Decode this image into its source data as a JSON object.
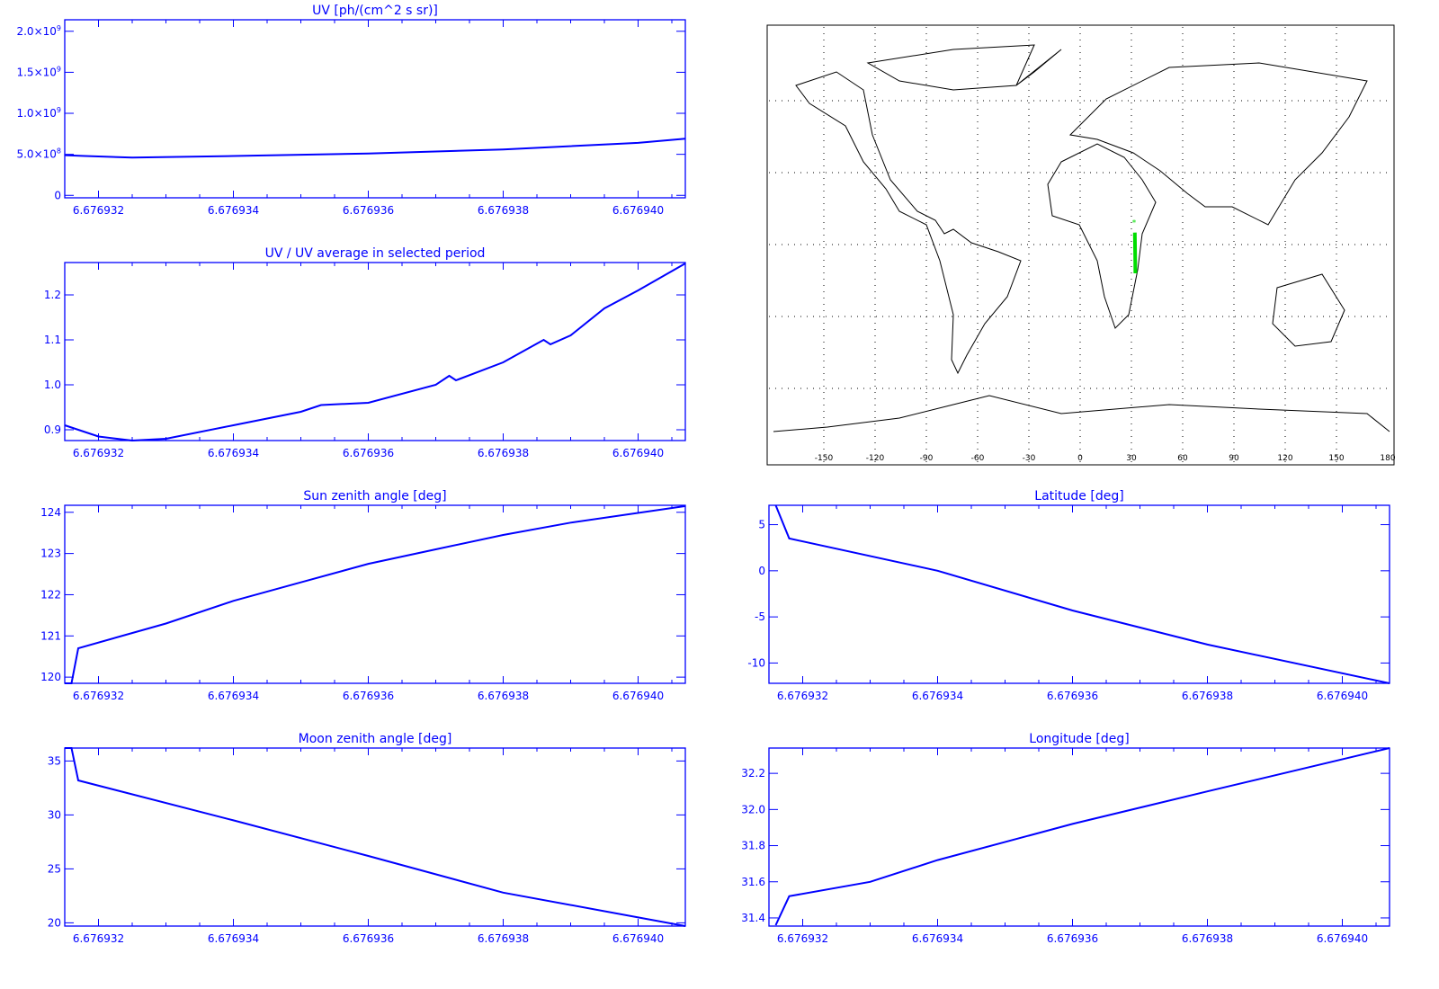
{
  "colors": {
    "axis": "#0000ff",
    "line": "#0000ff",
    "track": "#00dd00",
    "map": "#000000"
  },
  "chart_data": [
    {
      "type": "line",
      "title": "UV [ph/(cm^2 s sr)]",
      "xlim": [
        6.6769315,
        6.6769407
      ],
      "ylim": [
        -30000000.0,
        2140000000.0
      ],
      "xticks": [
        "6.676932",
        "6.676934",
        "6.676936",
        "6.676938",
        "6.676940"
      ],
      "xtick_values": [
        6.676932,
        6.676934,
        6.676936,
        6.676938,
        6.67694
      ],
      "yticks": [
        "0",
        "5.0x10^8",
        "1.0x10^9",
        "1.5x10^9",
        "2.0x10^9"
      ],
      "ytick_values": [
        0,
        500000000.0,
        1000000000.0,
        1500000000.0,
        2000000000.0
      ],
      "x": [
        6.6769315,
        6.6769318,
        6.6769325,
        6.676934,
        6.676936,
        6.676938,
        6.67694,
        6.6769407
      ],
      "y": [
        490000000.0,
        480000000.0,
        460000000.0,
        480000000.0,
        510000000.0,
        560000000.0,
        640000000.0,
        690000000.0
      ]
    },
    {
      "type": "line",
      "title": "UV / UV average in selected period",
      "xlim": [
        6.6769315,
        6.6769407
      ],
      "ylim": [
        0.876,
        1.272
      ],
      "xticks": [
        "6.676932",
        "6.676934",
        "6.676936",
        "6.676938",
        "6.676940"
      ],
      "xtick_values": [
        6.676932,
        6.676934,
        6.676936,
        6.676938,
        6.67694
      ],
      "yticks": [
        "0.9",
        "1.0",
        "1.1",
        "1.2"
      ],
      "ytick_values": [
        0.9,
        1.0,
        1.1,
        1.2
      ],
      "x": [
        6.6769315,
        6.676932,
        6.6769325,
        6.676933,
        6.676934,
        6.676935,
        6.6769353,
        6.676936,
        6.676937,
        6.6769372,
        6.6769373,
        6.676938,
        6.6769386,
        6.6769387,
        6.676939,
        6.6769395,
        6.67694,
        6.6769407
      ],
      "y": [
        0.91,
        0.885,
        0.876,
        0.88,
        0.91,
        0.94,
        0.955,
        0.96,
        1.0,
        1.02,
        1.01,
        1.05,
        1.1,
        1.09,
        1.11,
        1.17,
        1.21,
        1.27
      ]
    },
    {
      "type": "line",
      "title": "Sun zenith angle [deg]",
      "xlim": [
        6.6769315,
        6.6769407
      ],
      "ylim": [
        119.85,
        124.17
      ],
      "xticks": [
        "6.676932",
        "6.676934",
        "6.676936",
        "6.676938",
        "6.676940"
      ],
      "xtick_values": [
        6.676932,
        6.676934,
        6.676936,
        6.676938,
        6.67694
      ],
      "yticks": [
        "120",
        "121",
        "122",
        "123",
        "124"
      ],
      "ytick_values": [
        120,
        121,
        122,
        123,
        124
      ],
      "x": [
        6.6769315,
        6.6769316,
        6.6769317,
        6.676933,
        6.676934,
        6.676935,
        6.676936,
        6.676937,
        6.676938,
        6.676939,
        6.6769407
      ],
      "y": [
        119.85,
        119.85,
        120.7,
        121.3,
        121.85,
        122.3,
        122.75,
        123.1,
        123.45,
        123.75,
        124.15
      ]
    },
    {
      "type": "line",
      "title": "Latitude [deg]",
      "xlim": [
        6.6769315,
        6.6769407
      ],
      "ylim": [
        -12.2,
        7.1
      ],
      "xticks": [
        "6.676932",
        "6.676934",
        "6.676936",
        "6.676938",
        "6.676940"
      ],
      "xtick_values": [
        6.676932,
        6.676934,
        6.676936,
        6.676938,
        6.67694
      ],
      "yticks": [
        "-10",
        "-5",
        "0",
        "5"
      ],
      "ytick_values": [
        -10,
        -5,
        0,
        5
      ],
      "x": [
        6.6769316,
        6.6769318,
        6.676934,
        6.676936,
        6.676938,
        6.6769407
      ],
      "y": [
        7.1,
        3.5,
        0,
        -4.3,
        -8,
        -12.2
      ]
    },
    {
      "type": "line",
      "title": "Moon zenith angle [deg]",
      "xlim": [
        6.6769315,
        6.6769407
      ],
      "ylim": [
        19.7,
        36.2
      ],
      "xticks": [
        "6.676932",
        "6.676934",
        "6.676936",
        "6.676938",
        "6.676940"
      ],
      "xtick_values": [
        6.676932,
        6.676934,
        6.676936,
        6.676938,
        6.67694
      ],
      "yticks": [
        "20",
        "25",
        "30",
        "35"
      ],
      "ytick_values": [
        20,
        25,
        30,
        35
      ],
      "x": [
        6.6769315,
        6.6769316,
        6.6769317,
        6.676934,
        6.676936,
        6.676938,
        6.6769407
      ],
      "y": [
        36.2,
        36.2,
        33.2,
        29.5,
        26.2,
        22.8,
        19.7
      ]
    },
    {
      "type": "line",
      "title": "Longitude [deg]",
      "xlim": [
        6.6769315,
        6.6769407
      ],
      "ylim": [
        31.355,
        32.34
      ],
      "xticks": [
        "6.676932",
        "6.676934",
        "6.676936",
        "6.676938",
        "6.676940"
      ],
      "xtick_values": [
        6.676932,
        6.676934,
        6.676936,
        6.676938,
        6.67694
      ],
      "yticks": [
        "31.4",
        "31.6",
        "31.8",
        "32.0",
        "32.2"
      ],
      "ytick_values": [
        31.4,
        31.6,
        31.8,
        32.0,
        32.2
      ],
      "x": [
        6.6769316,
        6.6769318,
        6.676933,
        6.676934,
        6.676936,
        6.676938,
        6.6769407
      ],
      "y": [
        31.36,
        31.52,
        31.6,
        31.72,
        31.92,
        32.1,
        32.34
      ]
    }
  ],
  "map": {
    "lon_ticks": [
      "-150",
      "-120",
      "-90",
      "-60",
      "-30",
      "0",
      "30",
      "60",
      "90",
      "120",
      "150",
      "180"
    ],
    "lon_values": [
      -150,
      -120,
      -90,
      -60,
      -30,
      0,
      30,
      60,
      90,
      120,
      150,
      180
    ],
    "grid_lats": [
      60,
      30,
      0,
      -30,
      -60
    ],
    "track": {
      "lon": [
        32.0,
        32.1,
        32.2,
        32.3
      ],
      "lat": [
        5,
        0,
        -5,
        -12
      ]
    }
  }
}
